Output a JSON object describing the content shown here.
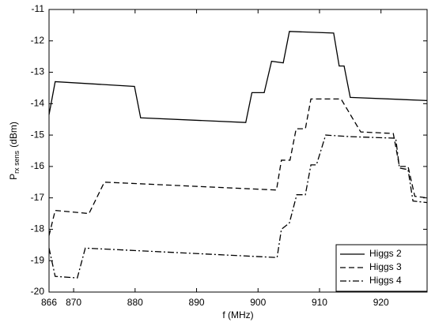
{
  "chart_data": {
    "type": "line",
    "xlabel": "f (MHz)",
    "ylabel": [
      "P",
      "rx sens",
      "(dBm)"
    ],
    "xlim": [
      866,
      927.5
    ],
    "xticks": [
      866,
      870,
      880,
      890,
      900,
      910,
      920
    ],
    "ylim": [
      -20,
      -11
    ],
    "yticks": [
      -20,
      -19,
      -18,
      -17,
      -16,
      -15,
      -14,
      -13,
      -12,
      -11
    ],
    "grid": false,
    "legend_position": "lower right",
    "series": [
      {
        "name": "Higgs 2",
        "color": "#000000",
        "line_style": "solid",
        "x": [
          866,
          867,
          879.9,
          880.9,
          898,
          899,
          901,
          902.2,
          904.1,
          905.1,
          912.3,
          913.2,
          914,
          915,
          927.5
        ],
        "values": [
          -14.35,
          -13.3,
          -13.45,
          -14.45,
          -14.6,
          -13.65,
          -13.65,
          -12.65,
          -12.7,
          -11.7,
          -11.75,
          -12.8,
          -12.8,
          -13.8,
          -13.9
        ]
      },
      {
        "name": "Higgs 3",
        "color": "#000000",
        "line_style": "dashed",
        "x": [
          866,
          867,
          872.5,
          875,
          903,
          903.8,
          905.2,
          906.2,
          907.7,
          908.6,
          913.5,
          916.7,
          922,
          923,
          924.4,
          925.5,
          927.5
        ],
        "values": [
          -18.2,
          -17.4,
          -17.5,
          -16.5,
          -16.75,
          -15.8,
          -15.8,
          -14.8,
          -14.8,
          -13.85,
          -13.85,
          -14.9,
          -14.95,
          -16,
          -16,
          -16.95,
          -17
        ]
      },
      {
        "name": "Higgs 4",
        "color": "#000000",
        "line_style": "dashdot",
        "x": [
          866,
          867,
          870.6,
          871.9,
          903.1,
          903.8,
          905.1,
          906.3,
          907.7,
          908.6,
          909.5,
          911,
          915,
          922.4,
          923,
          924.4,
          925.2,
          927.5
        ],
        "values": [
          -18.6,
          -19.5,
          -19.55,
          -18.6,
          -18.9,
          -18,
          -17.8,
          -16.9,
          -16.9,
          -15.95,
          -15.95,
          -15,
          -15.05,
          -15.1,
          -16.05,
          -16.1,
          -17.1,
          -17.15
        ]
      }
    ]
  }
}
